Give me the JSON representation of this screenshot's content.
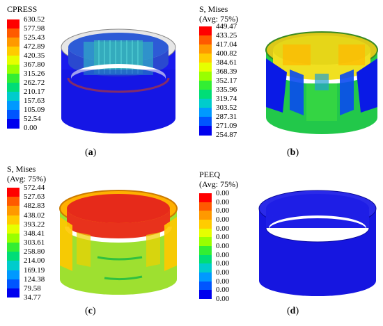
{
  "panels": [
    {
      "id": "a",
      "title_lines": [
        "CPRESS"
      ],
      "values": [
        "630.52",
        "577.98",
        "525.43",
        "472.89",
        "420.35",
        "367.80",
        "315.26",
        "262.72",
        "210.17",
        "157.63",
        "105.09",
        "52.54",
        "0.00"
      ],
      "caption_letter": "a"
    },
    {
      "id": "b",
      "title_lines": [
        "S, Mises",
        "(Avg: 75%)"
      ],
      "values": [
        "449.47",
        "433.25",
        "417.04",
        "400.82",
        "384.61",
        "368.39",
        "352.17",
        "335.96",
        "319.74",
        "303.52",
        "287.31",
        "271.09",
        "254.87"
      ],
      "caption_letter": "b"
    },
    {
      "id": "c",
      "title_lines": [
        "S, Mises",
        "(Avg: 75%)"
      ],
      "values": [
        "572.44",
        "527.63",
        "482.83",
        "438.02",
        "393.22",
        "348.41",
        "303.61",
        "258.80",
        "214.00",
        "169.19",
        "124.38",
        "79.58",
        "34.77"
      ],
      "caption_letter": "c"
    },
    {
      "id": "d",
      "title_lines": [
        "PEEQ",
        "(Avg: 75%)"
      ],
      "values": [
        "0.00",
        "0.00",
        "0.00",
        "0.00",
        "0.00",
        "0.00",
        "0.00",
        "0.00",
        "0.00",
        "0.00",
        "0.00",
        "0.00",
        "0.00"
      ],
      "caption_letter": "d"
    }
  ],
  "colormap": [
    "#ff0000",
    "#ff5a00",
    "#ff9900",
    "#ffcc00",
    "#e6ff00",
    "#99ff00",
    "#33ee33",
    "#00dd77",
    "#00cccc",
    "#0099ff",
    "#0055ff",
    "#0000ee"
  ]
}
